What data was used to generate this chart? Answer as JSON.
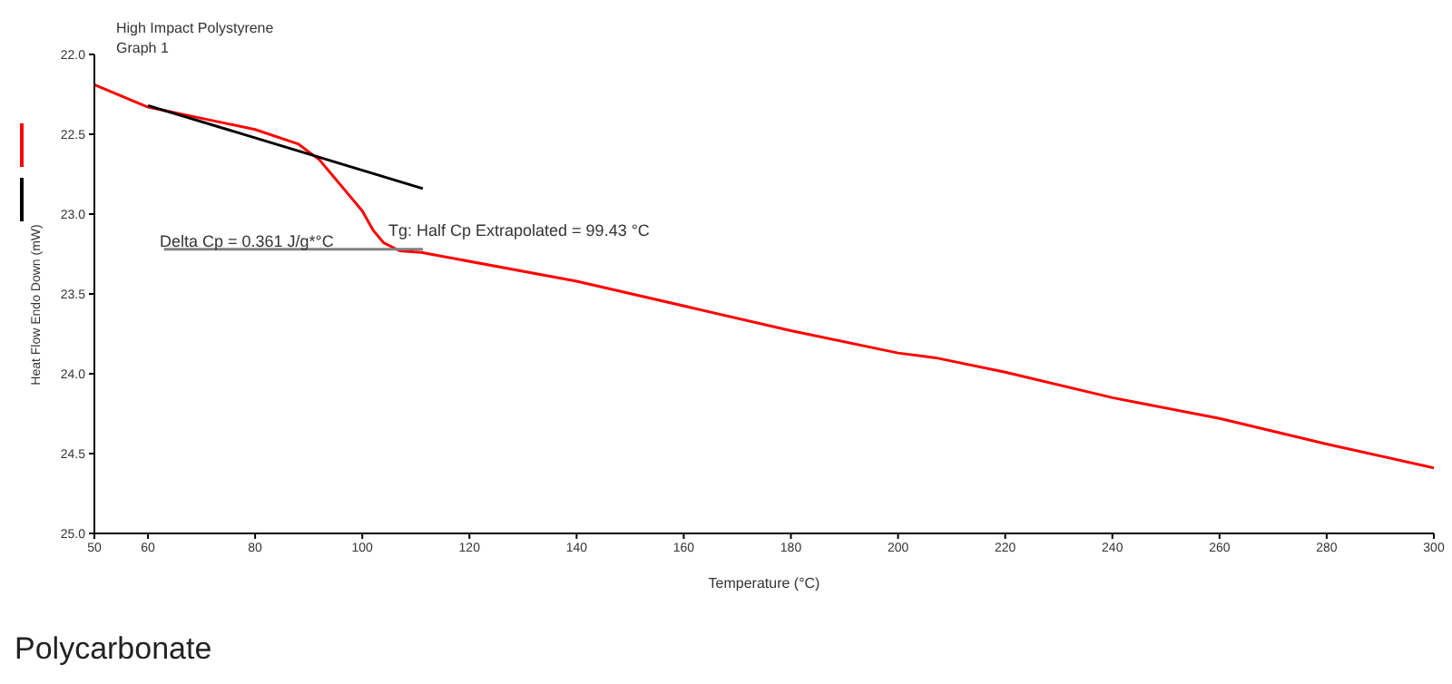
{
  "chart_data": {
    "type": "line",
    "title": "High Impact Polystyrene",
    "subtitle": "Graph 1",
    "xlabel": "Temperature (°C)",
    "ylabel": "Heat Flow Endo Down (mW)",
    "annotations": [
      "Delta Cp = 0.361 J/g*°C",
      "Tg: Half Cp Extrapolated = 99.43 °C",
      "Polycarbonate"
    ],
    "series": [
      {
        "color": "#ff0000",
        "x": [
          50,
          60,
          70,
          80,
          88,
          92,
          95,
          98,
          100,
          102,
          104,
          107,
          111,
          140,
          180,
          200,
          207,
          220,
          240,
          260,
          280,
          300
        ],
        "values": [
          22.19,
          22.33,
          22.4,
          22.47,
          22.56,
          22.66,
          22.78,
          22.9,
          22.98,
          23.1,
          23.18,
          23.23,
          23.24,
          23.42,
          23.73,
          23.87,
          23.9,
          23.99,
          24.15,
          24.28,
          24.44,
          24.59
        ]
      },
      {
        "color": "#000000",
        "x": [
          60,
          111.3
        ],
        "values": [
          22.32,
          22.84
        ]
      },
      {
        "color": "#808080",
        "x": [
          63,
          111.3
        ],
        "values": [
          23.22,
          23.22
        ]
      }
    ],
    "xlim": [
      50,
      300
    ],
    "xticks": [
      50,
      60,
      80,
      100,
      120,
      140,
      160,
      180,
      200,
      220,
      240,
      260,
      280,
      300
    ],
    "ylim": [
      25,
      22
    ],
    "yticks": [
      {
        "value": 22,
        "label": "22.0"
      },
      {
        "value": 22.5,
        "label": "22.5"
      },
      {
        "value": 23,
        "label": "23.0"
      },
      {
        "value": 23.5,
        "label": "23.5"
      },
      {
        "value": 24,
        "label": "24.0"
      },
      {
        "value": 24.5,
        "label": "24.5"
      },
      {
        "value": 25,
        "label": "25.0"
      }
    ],
    "grid": false,
    "marker": "none",
    "line_style": "solid"
  }
}
